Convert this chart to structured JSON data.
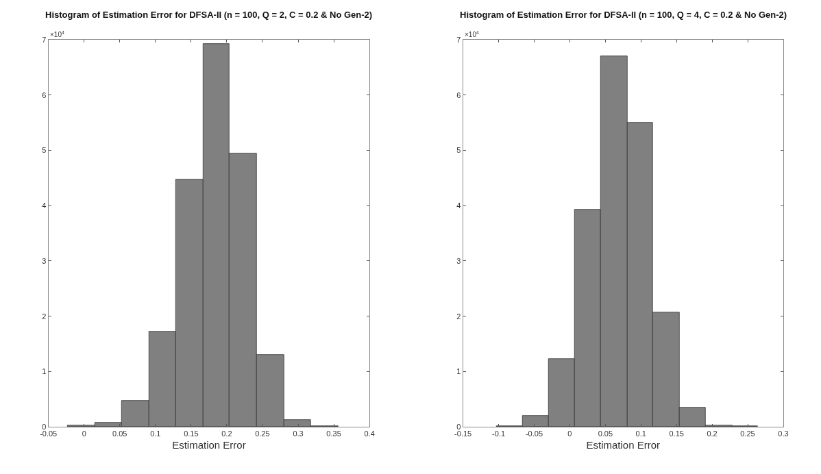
{
  "chart_data": [
    {
      "type": "histogram",
      "title": "Histogram of Estimation Error for DFSA-II (n = 100, Q = 2, C = 0.2 & No Gen-2)",
      "xlabel": "Estimation Error",
      "bins": [
        -0.023,
        0.015,
        0.053,
        0.091,
        0.129,
        0.167,
        0.204,
        0.242,
        0.28,
        0.318,
        0.356
      ],
      "values": [
        0.02,
        0.08,
        0.47,
        1.72,
        4.47,
        6.92,
        4.94,
        1.3,
        0.12,
        0.01
      ],
      "color": "#808080",
      "xlim": [
        -0.05,
        0.4
      ],
      "xticks": [
        -0.05,
        0,
        0.05,
        0.1,
        0.15,
        0.2,
        0.25,
        0.3,
        0.35,
        0.4
      ],
      "ylim": [
        0,
        7
      ],
      "yticks": [
        0,
        1,
        2,
        3,
        4,
        5,
        6,
        7
      ],
      "annotations": [
        "×10$^{4}$"
      ]
    },
    {
      "type": "histogram",
      "title": "Histogram of Estimation Error for DFSA-II (n = 100, Q = 4, C = 0.2 & No Gen-2)",
      "xlabel": "Estimation Error",
      "bins": [
        -0.103,
        -0.066,
        -0.03,
        0.007,
        0.044,
        0.081,
        0.117,
        0.154,
        0.191,
        0.228,
        0.264
      ],
      "values": [
        0.01,
        0.2,
        1.23,
        3.93,
        6.7,
        5.5,
        2.07,
        0.35,
        0.03,
        0.01
      ],
      "color": "#808080",
      "xlim": [
        -0.15,
        0.3
      ],
      "xticks": [
        -0.15,
        -0.1,
        -0.05,
        0,
        0.05,
        0.1,
        0.15,
        0.2,
        0.25,
        0.3
      ],
      "ylim": [
        0,
        7
      ],
      "yticks": [
        0,
        1,
        2,
        3,
        4,
        5,
        6,
        7
      ],
      "annotations": [
        "×10$^{4}$"
      ]
    }
  ]
}
